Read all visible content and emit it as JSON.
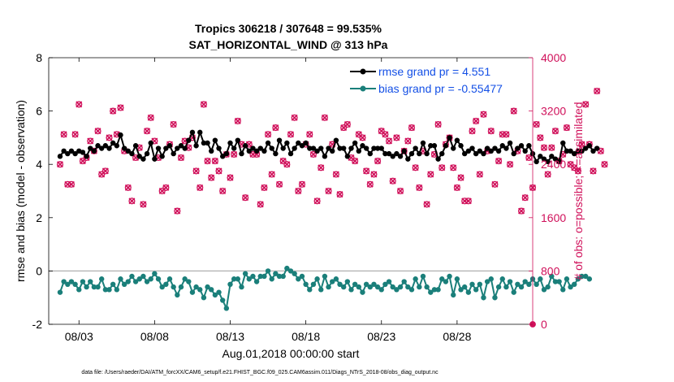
{
  "chart_data": {
    "type": "line",
    "title": "Tropics 306218 / 307648 = 99.535%",
    "subtitle": "SAT_HORIZONTAL_WIND @ 313 hPa",
    "xlabel": "Aug.01,2018 00:00:00 start",
    "ylabel_left": "rmse and bias (model - observation)",
    "ylabel_right": "# of obs: o=possible; ×=assimilated",
    "footnote": "data file: /Users/raeder/DAI/ATM_forcXX/CAM6_setup/f.e21.FHIST_BGC.f09_025.CAM6assim.011/Diags_NTrS_2018-08/obs_diag_output.nc",
    "xlim": [
      1,
      33
    ],
    "ylim_left": [
      -2,
      8
    ],
    "ylim_right": [
      0,
      4000
    ],
    "x_ticks": [
      3,
      8,
      13,
      18,
      23,
      28
    ],
    "x_tick_labels": [
      "08/03",
      "08/08",
      "08/13",
      "08/18",
      "08/23",
      "08/28"
    ],
    "y_ticks_left": [
      -2,
      0,
      2,
      4,
      6,
      8
    ],
    "y_tick_labels_left": [
      "-2",
      "0",
      "2",
      "4",
      "6",
      "8"
    ],
    "y_ticks_right": [
      0,
      800,
      1600,
      2400,
      3200,
      4000
    ],
    "y_tick_labels_right": [
      "0",
      "800",
      "1600",
      "2400",
      "3200",
      "4000"
    ],
    "zero_line": 0,
    "time_step_days": 0.25,
    "series": [
      {
        "name": "rmse grand pr = 4.551",
        "axis": "left",
        "color": "#000000",
        "marker": "circle",
        "values": [
          4.3,
          4.5,
          4.4,
          4.5,
          4.4,
          4.5,
          4.45,
          4.3,
          4.6,
          4.5,
          4.7,
          4.6,
          4.7,
          4.6,
          4.8,
          4.7,
          5.1,
          4.6,
          4.5,
          4.4,
          4.7,
          4.3,
          4.2,
          4.4,
          4.8,
          4.2,
          4.6,
          4.3,
          4.6,
          4.7,
          4.4,
          4.6,
          4.7,
          4.6,
          4.9,
          5.2,
          4.7,
          5.2,
          4.8,
          4.8,
          4.5,
          4.9,
          4.6,
          4.3,
          4.4,
          4.8,
          4.6,
          4.9,
          4.4,
          4.7,
          4.5,
          4.6,
          4.5,
          4.6,
          4.5,
          4.8,
          4.6,
          4.4,
          4.9,
          4.6,
          4.8,
          4.4,
          4.6,
          4.8,
          4.7,
          4.8,
          4.6,
          4.6,
          4.5,
          4.6,
          4.3,
          4.6,
          4.5,
          4.9,
          4.6,
          4.6,
          4.3,
          4.6,
          4.8,
          4.5,
          4.7,
          4.6,
          4.4,
          4.6,
          4.6,
          4.6,
          4.4,
          4.4,
          4.3,
          4.4,
          4.3,
          4.5,
          4.2,
          4.4,
          4.6,
          4.4,
          4.8,
          4.4,
          4.7,
          4.7,
          4.2,
          4.4,
          4.7,
          5.0,
          4.6,
          4.9,
          4.7,
          4.4,
          4.5,
          4.6,
          4.4,
          4.5,
          4.4,
          4.6,
          4.5,
          4.6,
          4.5,
          4.7,
          4.6,
          4.8,
          4.4,
          4.6,
          4.7,
          4.5,
          4.7,
          4.4,
          4.1,
          4.3,
          4.2,
          4.1,
          4.3,
          4.2,
          4.1,
          4.8,
          4.5,
          4.5,
          4.4,
          4.5,
          4.5,
          4.6,
          4.7,
          4.5,
          4.6
        ]
      },
      {
        "name": "bias grand pr = -0.55477",
        "axis": "left",
        "color": "#1a7f7a",
        "marker": "circle",
        "values": [
          -0.8,
          -0.4,
          -0.5,
          -0.4,
          -0.5,
          -0.7,
          -0.4,
          -0.6,
          -0.4,
          -0.6,
          -0.6,
          -0.3,
          -0.7,
          -0.7,
          -0.5,
          -0.7,
          -0.3,
          -0.5,
          -0.4,
          -0.2,
          -0.4,
          -0.3,
          -0.2,
          -0.4,
          -0.3,
          -0.1,
          -0.3,
          -0.6,
          -0.5,
          -0.3,
          -0.6,
          -0.9,
          -0.6,
          -0.3,
          -0.4,
          -0.8,
          -0.6,
          -0.7,
          -1.0,
          -0.6,
          -0.7,
          -0.9,
          -0.8,
          -1.1,
          -1.4,
          -0.5,
          -0.3,
          -0.3,
          -0.6,
          -0.1,
          -0.3,
          -0.2,
          -0.4,
          -0.2,
          -0.2,
          0.0,
          -0.3,
          -0.1,
          -0.2,
          -0.2,
          0.1,
          0.0,
          -0.1,
          -0.3,
          -0.2,
          -0.5,
          -0.7,
          -0.5,
          -0.3,
          -0.7,
          -0.2,
          -0.6,
          -0.4,
          -0.3,
          -0.5,
          -0.6,
          -0.4,
          -0.7,
          -0.5,
          -0.6,
          -0.8,
          -0.5,
          -0.6,
          -0.5,
          -0.6,
          -0.7,
          -0.5,
          -0.4,
          -0.6,
          -0.7,
          -0.6,
          -0.4,
          -0.6,
          -0.7,
          -0.3,
          -0.6,
          -0.2,
          -0.6,
          -0.8,
          -0.7,
          -0.7,
          -0.3,
          -0.4,
          -0.2,
          -0.9,
          -0.3,
          -0.7,
          -0.6,
          -0.8,
          -0.5,
          -0.7,
          -0.5,
          -1.0,
          -0.4,
          -0.3,
          -1.0,
          -0.6,
          -0.3,
          -0.6,
          -0.4,
          -0.8,
          -0.5,
          -0.6,
          -0.4,
          -0.5,
          -0.3,
          -0.5,
          -0.3,
          -0.7,
          -0.6,
          -0.2,
          -0.4,
          -0.4,
          -0.7,
          -0.3,
          -0.6,
          -0.5,
          -0.3,
          -0.2,
          -0.2,
          -0.3
        ]
      }
    ],
    "obs_possible": {
      "name": "possible",
      "axis": "right",
      "marker": "circle",
      "color": "#d0105a",
      "values": [
        2400,
        2850,
        2100,
        2100,
        2850,
        3300,
        2450,
        2500,
        2750,
        2600,
        2900,
        2250,
        2300,
        2800,
        3200,
        2850,
        3250,
        2600,
        2050,
        1850,
        2500,
        2650,
        1800,
        2900,
        3100,
        2750,
        2500,
        2000,
        2050,
        2700,
        3000,
        1700,
        2500,
        2750,
        2650,
        2800,
        2300,
        2050,
        3300,
        2450,
        2200,
        2450,
        2300,
        2000,
        2550,
        2200,
        2550,
        3050,
        2700,
        1900,
        2700,
        2550,
        2550,
        1800,
        2050,
        2850,
        2250,
        2950,
        2100,
        2450,
        2400,
        2850,
        3100,
        2000,
        2100,
        2700,
        2850,
        2550,
        1850,
        2350,
        3100,
        2000,
        2700,
        2250,
        1950,
        2950,
        3000,
        2500,
        2450,
        2850,
        2800,
        2300,
        2100,
        2250,
        2450,
        2900,
        2850,
        2750,
        2150,
        2800,
        2000,
        2600,
        2750,
        2950,
        2350,
        2050,
        2600,
        1800,
        2250,
        2550,
        3000,
        2350,
        2700,
        2800,
        2350,
        2050,
        2200,
        1850,
        1850,
        2900,
        3050,
        2250,
        3150,
        2600,
        2900,
        2100,
        2450,
        2850,
        2850,
        2400,
        3200,
        2600,
        1700,
        1900,
        2500,
        2050,
        3000,
        2800,
        2650,
        2250,
        2650,
        2900,
        2450,
        2550,
        2950,
        2400,
        2350,
        2300,
        2700,
        3300,
        2700,
        2300,
        3500,
        2600,
        2400
      ]
    },
    "obs_assimilated": {
      "name": "assimilated",
      "axis": "right",
      "marker": "x",
      "color": "#d0105a",
      "values": [
        2400,
        2850,
        2100,
        2100,
        2850,
        3300,
        2450,
        2500,
        2750,
        2600,
        2900,
        2250,
        2300,
        2800,
        3200,
        2850,
        3250,
        2600,
        2050,
        1850,
        2500,
        2650,
        1800,
        2900,
        3100,
        2750,
        2500,
        2000,
        2050,
        2700,
        3000,
        1700,
        2500,
        2750,
        2650,
        2800,
        2300,
        2050,
        3300,
        2450,
        2200,
        2450,
        2300,
        2000,
        2550,
        2200,
        2550,
        3050,
        2700,
        1900,
        2700,
        2550,
        2550,
        1800,
        2050,
        2850,
        2250,
        2950,
        2100,
        2450,
        2400,
        2850,
        3100,
        2000,
        2100,
        2700,
        2850,
        2550,
        1850,
        2350,
        3100,
        2000,
        2700,
        2250,
        1950,
        2950,
        3000,
        2500,
        2450,
        2850,
        2800,
        2300,
        2100,
        2250,
        2450,
        2900,
        2850,
        2750,
        2150,
        2800,
        2000,
        2600,
        2750,
        2950,
        2350,
        2050,
        2600,
        1800,
        2250,
        2550,
        3000,
        2350,
        2700,
        2800,
        2350,
        2050,
        2200,
        1850,
        1850,
        2900,
        3050,
        2250,
        3150,
        2600,
        2900,
        2100,
        2450,
        2850,
        2850,
        2400,
        3200,
        2600,
        1700,
        1900,
        2500,
        2050,
        3000,
        2800,
        2650,
        2250,
        2650,
        2900,
        2450,
        2550,
        2950,
        2400,
        2350,
        2300,
        2700,
        3300,
        2700,
        2300,
        3500,
        2600,
        2400
      ]
    }
  }
}
